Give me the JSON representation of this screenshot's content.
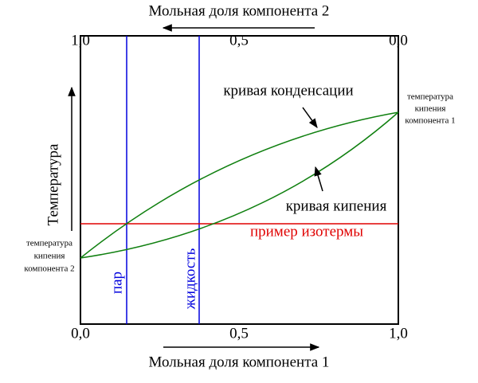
{
  "axes": {
    "top": {
      "title": "Мольная доля компонента 2",
      "ticks": [
        "1,0",
        "0,5",
        "0,0"
      ]
    },
    "bottom": {
      "title": "Мольная доля компонента 1",
      "ticks": [
        "0,0",
        "0,5",
        "1,0"
      ]
    },
    "left": {
      "title": "Температура"
    }
  },
  "curves": {
    "condensation": "кривая конденсации",
    "boiling": "кривая кипения",
    "isotherm": "пример изотермы"
  },
  "phases": {
    "vapor": "пар",
    "liquid": "жидкость"
  },
  "annotations": {
    "component1": [
      "температура",
      "кипения",
      "компонента 1"
    ],
    "component2": [
      "температура",
      "кипения",
      "компонента 2"
    ]
  }
}
